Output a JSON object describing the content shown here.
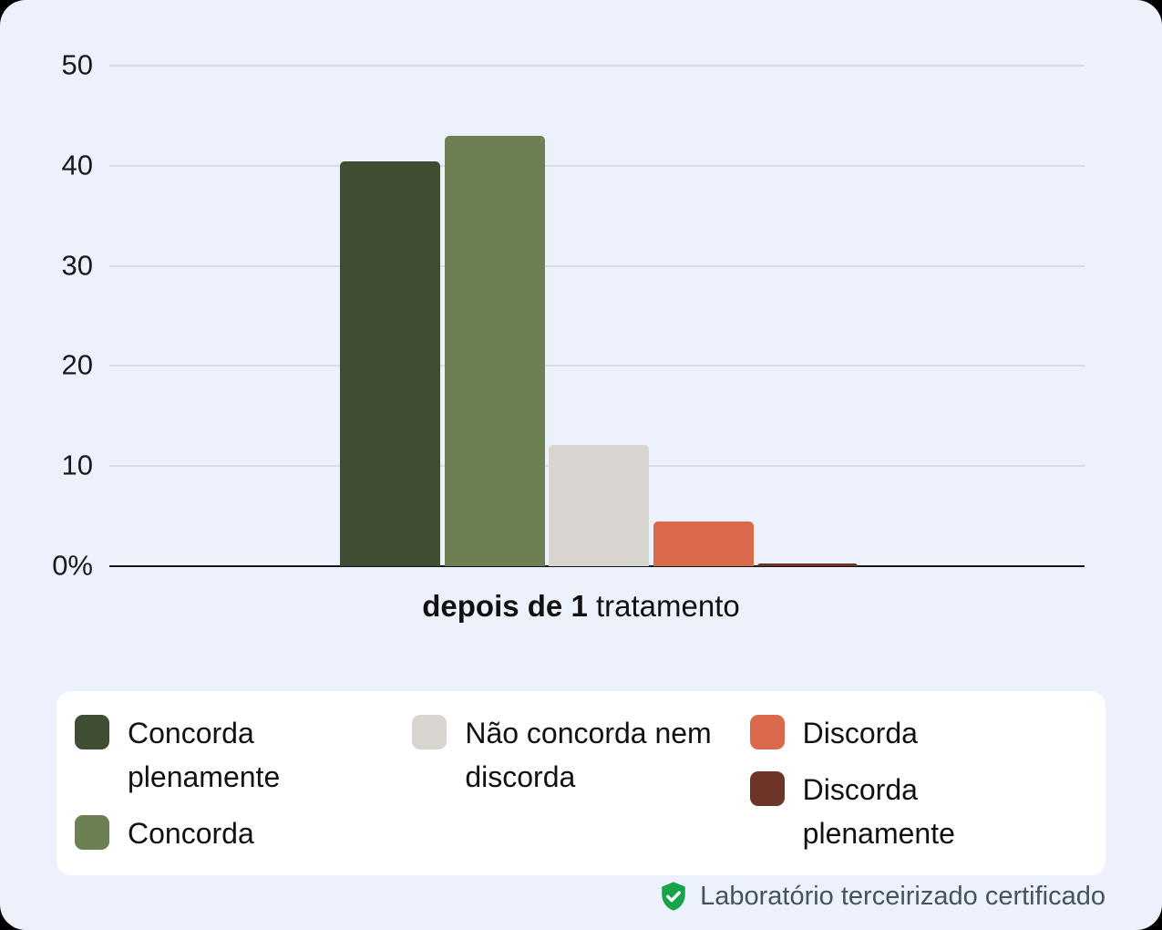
{
  "page": {
    "background": "#edf1fb"
  },
  "chart_data": {
    "type": "bar",
    "categories": [
      "Concorda plenamente",
      "Concorda",
      "Não concorda nem discorda",
      "Discorda",
      "Discorda plenamente"
    ],
    "values": [
      40.4,
      43.0,
      12.1,
      4.5,
      0.3
    ],
    "colors": [
      "#3f4d33",
      "#6d8054",
      "#d8d4cf",
      "#d9694a",
      "#6f3428"
    ],
    "title": "",
    "xlabel_bold": "depois de 1",
    "xlabel_rest": " tratamento",
    "ylabel": "",
    "ylim": [
      0,
      50
    ],
    "yticks": [
      0,
      10,
      20,
      30,
      40,
      50
    ],
    "ytick_labels": [
      "0%",
      "10",
      "20",
      "30",
      "40",
      "50"
    ],
    "grid": true,
    "legend_position": "bottom"
  },
  "legend": {
    "columns": [
      [
        {
          "label": "Concorda plenamente",
          "color": "#3f4d33"
        },
        {
          "label": "Concorda",
          "color": "#6d8054"
        }
      ],
      [
        {
          "label": "Não concorda nem discorda",
          "color": "#d8d4cf"
        }
      ],
      [
        {
          "label": "Discorda",
          "color": "#d9694a"
        },
        {
          "label": "Discorda plenamente",
          "color": "#6f3428"
        }
      ]
    ]
  },
  "footer": {
    "text": "Laboratório terceirizado certificado",
    "icon": "shield-check-icon",
    "icon_color": "#18a34a"
  }
}
